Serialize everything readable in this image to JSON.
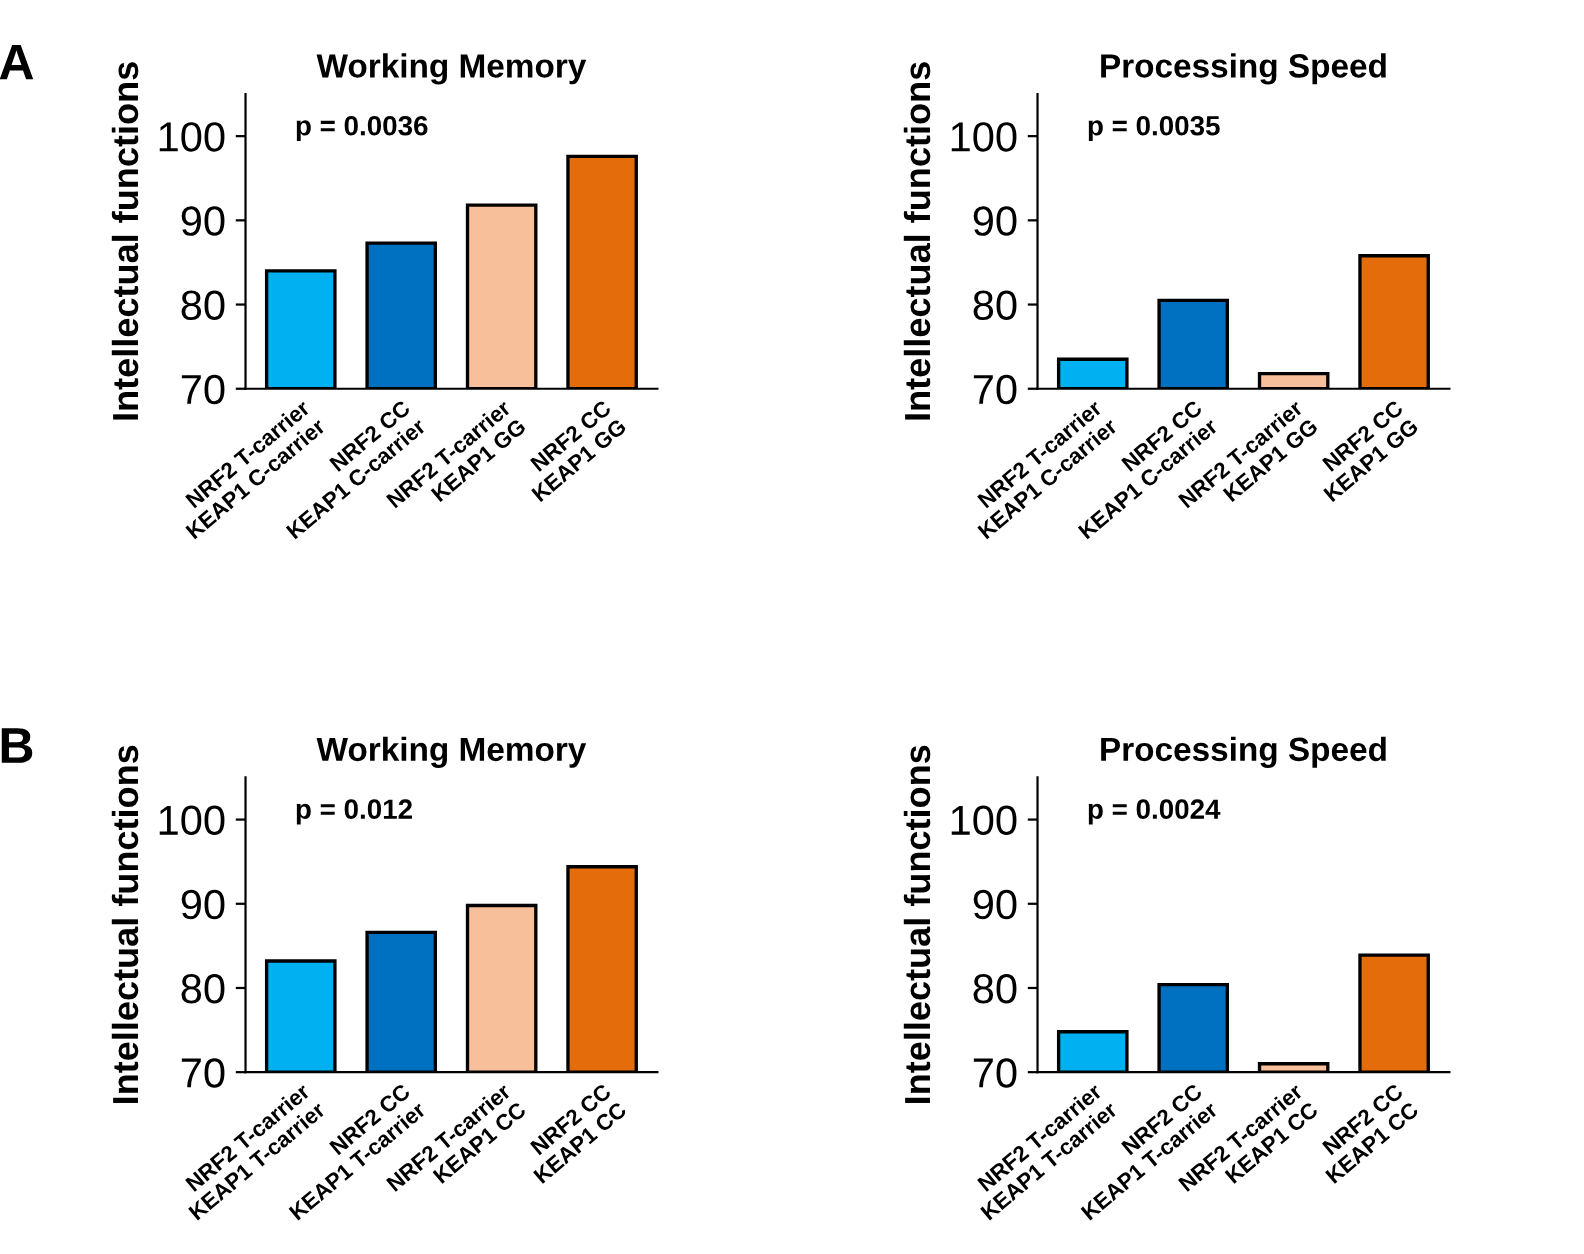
{
  "chart_data": [
    {
      "type": "bar",
      "title": "Working Memory",
      "ylabel": "Intellectual functions",
      "annotations": [
        "A",
        "p = 0.0036"
      ],
      "categories": [
        "NRF2 T-carrier\nKEAP1 C-carrier",
        "NRF2 CC\nKEAP1 C-carrier",
        "NRF2 T-carrier\nKEAP1 GG",
        "NRF2 CC\nKEAP1 GG"
      ],
      "values": [
        84,
        87.3,
        91.8,
        97.6
      ],
      "colors": [
        "#00b0f0",
        "#0070c0",
        "#f8c09a",
        "#e46c0a"
      ],
      "ylim": [
        70,
        105
      ],
      "yticks": [
        70,
        80,
        90,
        100
      ],
      "grid": false
    },
    {
      "type": "bar",
      "title": "Processing Speed",
      "ylabel": "Intellectual functions",
      "annotations": [
        "p = 0.0035"
      ],
      "categories": [
        "NRF2 T-carrier\nKEAP1 C-carrier",
        "NRF2 CC\nKEAP1 C-carrier",
        "NRF2 T-carrier\nKEAP1 GG",
        "NRF2 CC\nKEAP1 GG"
      ],
      "values": [
        73.5,
        80.5,
        71.8,
        85.8
      ],
      "colors": [
        "#00b0f0",
        "#0070c0",
        "#f8c09a",
        "#e46c0a"
      ],
      "ylim": [
        70,
        105
      ],
      "yticks": [
        70,
        80,
        90,
        100
      ],
      "grid": false
    },
    {
      "type": "bar",
      "title": "Working Memory",
      "ylabel": "Intellectual functions",
      "annotations": [
        "B",
        "p = 0.012"
      ],
      "categories": [
        "NRF2 T-carrier\nKEAP1 T-carrier",
        "NRF2 CC\nKEAP1 T-carrier",
        "NRF2 T-carrier\nKEAP1 CC",
        "NRF2 CC\nKEAP1 CC"
      ],
      "values": [
        83.2,
        86.6,
        89.8,
        94.4
      ],
      "colors": [
        "#00b0f0",
        "#0070c0",
        "#f8c09a",
        "#e46c0a"
      ],
      "ylim": [
        70,
        105
      ],
      "yticks": [
        70,
        80,
        90,
        100
      ],
      "grid": false
    },
    {
      "type": "bar",
      "title": "Processing Speed",
      "ylabel": "Intellectual functions",
      "annotations": [
        "p = 0.0024"
      ],
      "categories": [
        "NRF2 T-carrier\nKEAP1 T-carrier",
        "NRF2 CC\nKEAP1 T-carrier",
        "NRF2 T-carrier\nKEAP1 CC",
        "NRF2 CC\nKEAP1 CC"
      ],
      "values": [
        74.8,
        80.4,
        71,
        83.9
      ],
      "colors": [
        "#00b0f0",
        "#0070c0",
        "#f8c09a",
        "#e46c0a"
      ],
      "ylim": [
        70,
        105
      ],
      "yticks": [
        70,
        80,
        90,
        100
      ],
      "grid": false
    }
  ]
}
